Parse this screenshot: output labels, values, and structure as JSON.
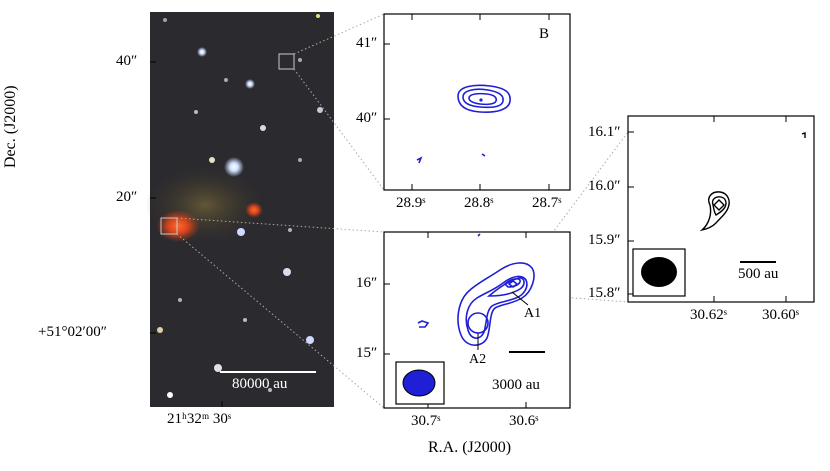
{
  "optical_panel": {
    "dec_ticks": [
      "40″",
      "20″",
      "+51°02′00″"
    ],
    "ra_tick": "21ʰ32ᵐ 30ˢ",
    "dec_axis_label": "Dec. (J2000)",
    "scale_bar_label": "80000 au"
  },
  "panel_b": {
    "label": "B",
    "y_ticks": [
      "41″",
      "40″"
    ],
    "x_ticks": [
      "28.9ˢ",
      "28.8ˢ",
      "28.7ˢ"
    ],
    "contour_color": "#1f1fd6"
  },
  "panel_a": {
    "y_ticks": [
      "16″",
      "15″"
    ],
    "x_ticks": [
      "30.7ˢ",
      "30.6ˢ"
    ],
    "source_labels": [
      "A1",
      "A2"
    ],
    "scale_bar_label": "3000 au",
    "ra_axis_label": "R.A. (J2000)",
    "beam_color": "#1f1fd6"
  },
  "panel_zoom": {
    "y_ticks": [
      "16.1″",
      "16.0″",
      "15.9″",
      "15.8″"
    ],
    "x_ticks": [
      "30.62ˢ",
      "30.60ˢ"
    ],
    "scale_bar_label": "500 au",
    "beam_color": "#000000"
  }
}
